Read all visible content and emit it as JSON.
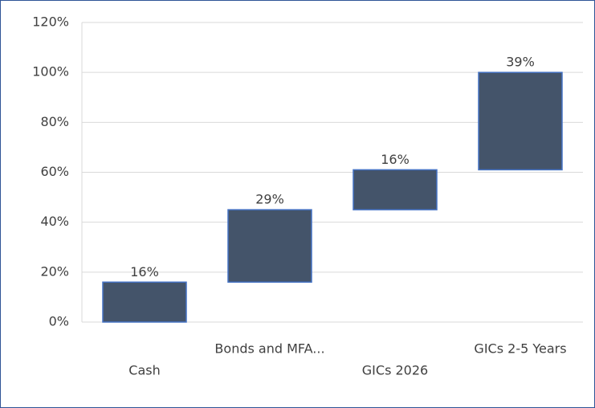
{
  "chart_data": {
    "type": "waterfall",
    "categories": [
      "Cash",
      "Bonds and MFA...",
      "GICs 2026",
      "GICs 2-5 Years"
    ],
    "values": [
      16,
      29,
      16,
      39
    ],
    "value_labels": [
      "16%",
      "29%",
      "16%",
      "39%"
    ],
    "color": "#44546a",
    "ylim": [
      0,
      120
    ],
    "yticks": [
      {
        "value": 0,
        "label": "0%"
      },
      {
        "value": 20,
        "label": "20%"
      },
      {
        "value": 40,
        "label": "40%"
      },
      {
        "value": 60,
        "label": "60%"
      },
      {
        "value": 80,
        "label": "80%"
      },
      {
        "value": 100,
        "label": "100%"
      },
      {
        "value": 120,
        "label": "120%"
      }
    ],
    "grid": true
  }
}
